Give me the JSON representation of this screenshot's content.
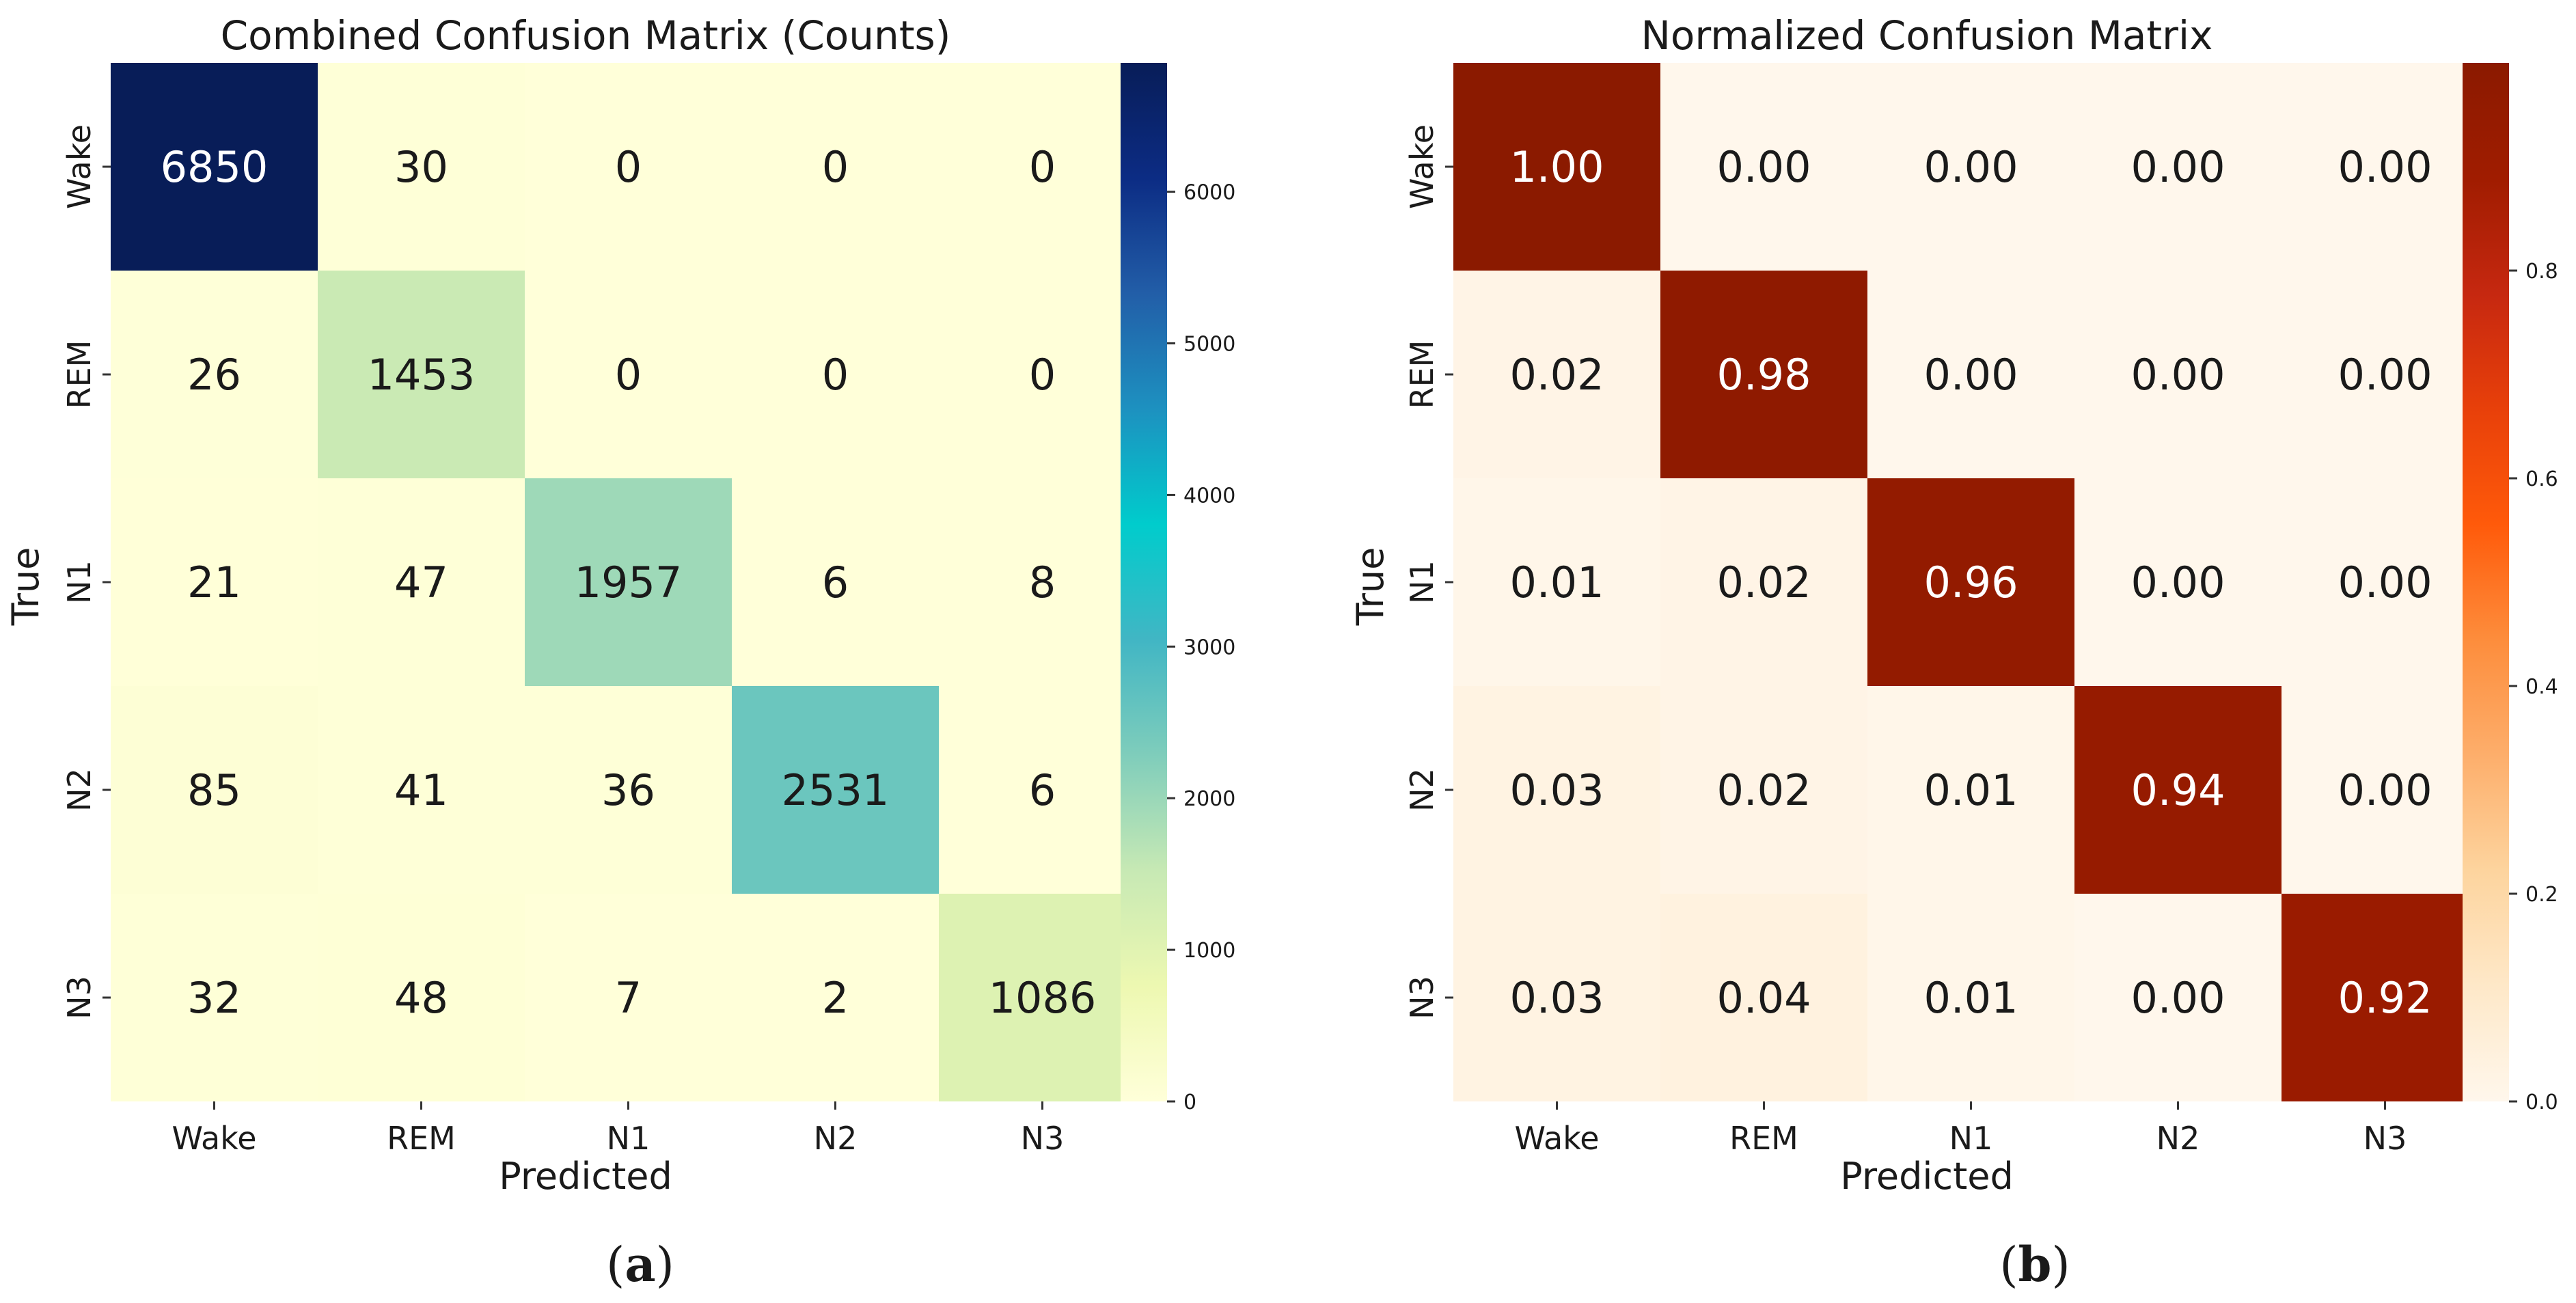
{
  "chart_data": [
    {
      "type": "heatmap",
      "title": "Combined Confusion Matrix (Counts)",
      "xlabel": "Predicted",
      "ylabel": "True",
      "x_categories": [
        "Wake",
        "REM",
        "N1",
        "N2",
        "N3"
      ],
      "y_categories": [
        "Wake",
        "REM",
        "N1",
        "N2",
        "N3"
      ],
      "values": [
        [
          6850,
          30,
          0,
          0,
          0
        ],
        [
          26,
          1453,
          0,
          0,
          0
        ],
        [
          21,
          47,
          1957,
          6,
          8
        ],
        [
          85,
          41,
          36,
          2531,
          6
        ],
        [
          32,
          48,
          7,
          2,
          1086
        ]
      ],
      "value_format": "int",
      "colormap": "YlGnBu",
      "colorbar_range": [
        0,
        6850
      ],
      "colorbar_ticks": [
        0,
        1000,
        2000,
        3000,
        4000,
        5000,
        6000
      ],
      "panel_label": "a"
    },
    {
      "type": "heatmap",
      "title": "Normalized Confusion Matrix",
      "xlabel": "Predicted",
      "ylabel": "True",
      "x_categories": [
        "Wake",
        "REM",
        "N1",
        "N2",
        "N3"
      ],
      "y_categories": [
        "Wake",
        "REM",
        "N1",
        "N2",
        "N3"
      ],
      "values": [
        [
          1.0,
          0.0,
          0.0,
          0.0,
          0.0
        ],
        [
          0.02,
          0.98,
          0.0,
          0.0,
          0.0
        ],
        [
          0.01,
          0.02,
          0.96,
          0.0,
          0.0
        ],
        [
          0.03,
          0.02,
          0.01,
          0.94,
          0.0
        ],
        [
          0.03,
          0.04,
          0.01,
          0.0,
          0.92
        ]
      ],
      "value_format": "2f",
      "colormap": "OrRd",
      "colorbar_range": [
        0,
        1.0
      ],
      "colorbar_ticks": [
        "0.0",
        "0.2",
        "0.4",
        "0.6",
        "0.8"
      ],
      "panel_label": "b"
    }
  ],
  "colors": {
    "ylgnbu": [
      "#ffffd9",
      "#edf8b1",
      "#c7e9b4",
      "#7fcdbb",
      "#41b6c4",
      "#00cccc",
      "#1d91c0",
      "#225ea8",
      "#0c2c84",
      "#081d58"
    ],
    "orrd": [
      "#fff7ec",
      "#fee8c8",
      "#fdd49e",
      "#fdae6b",
      "#fd8d3c",
      "#ff5a0a",
      "#e8400a",
      "#c62810",
      "#a01c00",
      "#8b1a00"
    ]
  }
}
